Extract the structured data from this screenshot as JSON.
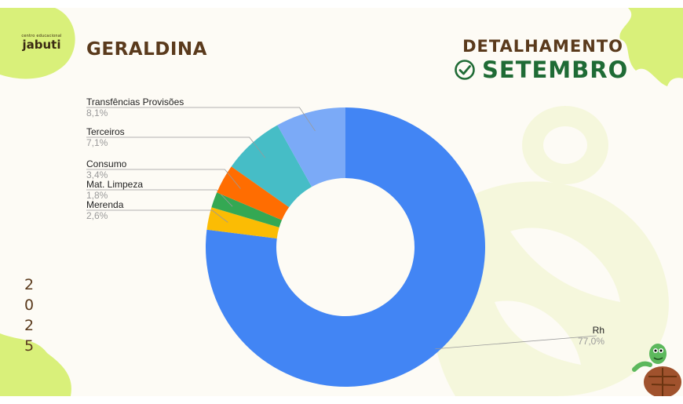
{
  "header": {
    "logo_small": "centro educacional",
    "logo_big": "jabuti",
    "school_name": "GERALDINA",
    "detail_title": "DETALHAMENTO",
    "month": "SETEMBRO"
  },
  "year_digits": [
    "2",
    "0",
    "2",
    "5"
  ],
  "icons": [
    "check-circle-icon",
    "turtle-mascot-icon"
  ],
  "colors": {
    "brand_brown": "#5a3a1c",
    "brand_green": "#1f6b35",
    "accent_lime": "#d9f07a"
  },
  "chart_data": {
    "type": "pie",
    "donut": true,
    "slices": [
      {
        "label": "Rh",
        "value": 77.0,
        "pct_label": "77,0%",
        "color": "#4285f4"
      },
      {
        "label": "Merenda",
        "value": 2.6,
        "pct_label": "2,6%",
        "color": "#fbbc04"
      },
      {
        "label": "Mat. Limpeza",
        "value": 1.8,
        "pct_label": "1,8%",
        "color": "#34a853"
      },
      {
        "label": "Consumo",
        "value": 3.4,
        "pct_label": "3,4%",
        "color": "#ff6d01"
      },
      {
        "label": "Terceiros",
        "value": 7.1,
        "pct_label": "7,1%",
        "color": "#46bdc6"
      },
      {
        "label": "Transfências Provisões",
        "value": 8.1,
        "pct_label": "8,1%",
        "color": "#7baaf7"
      }
    ],
    "legend": "callout-labels"
  }
}
